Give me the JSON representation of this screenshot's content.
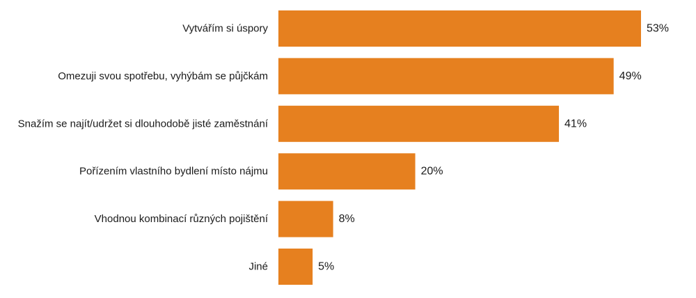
{
  "chart_data": {
    "type": "bar",
    "orientation": "horizontal",
    "categories": [
      "Vytvářím si úspory",
      "Omezuji svou spotřebu, vyhýbám se půjčkám",
      "Snažím se najít/udržet si dlouhodobě jisté zaměstnání",
      "Pořízením vlastního bydlení místo nájmu",
      "Vhodnou kombinací různých pojištění",
      "Jiné"
    ],
    "values": [
      53,
      49,
      41,
      20,
      8,
      5
    ],
    "value_labels": [
      "53%",
      "49%",
      "41%",
      "20%",
      "8%",
      "5%"
    ],
    "unit": "%",
    "xlim": [
      0,
      53
    ],
    "grid": false,
    "legend": "none",
    "bar_color": "#E6801F",
    "text_color": "#1a1a1a"
  }
}
